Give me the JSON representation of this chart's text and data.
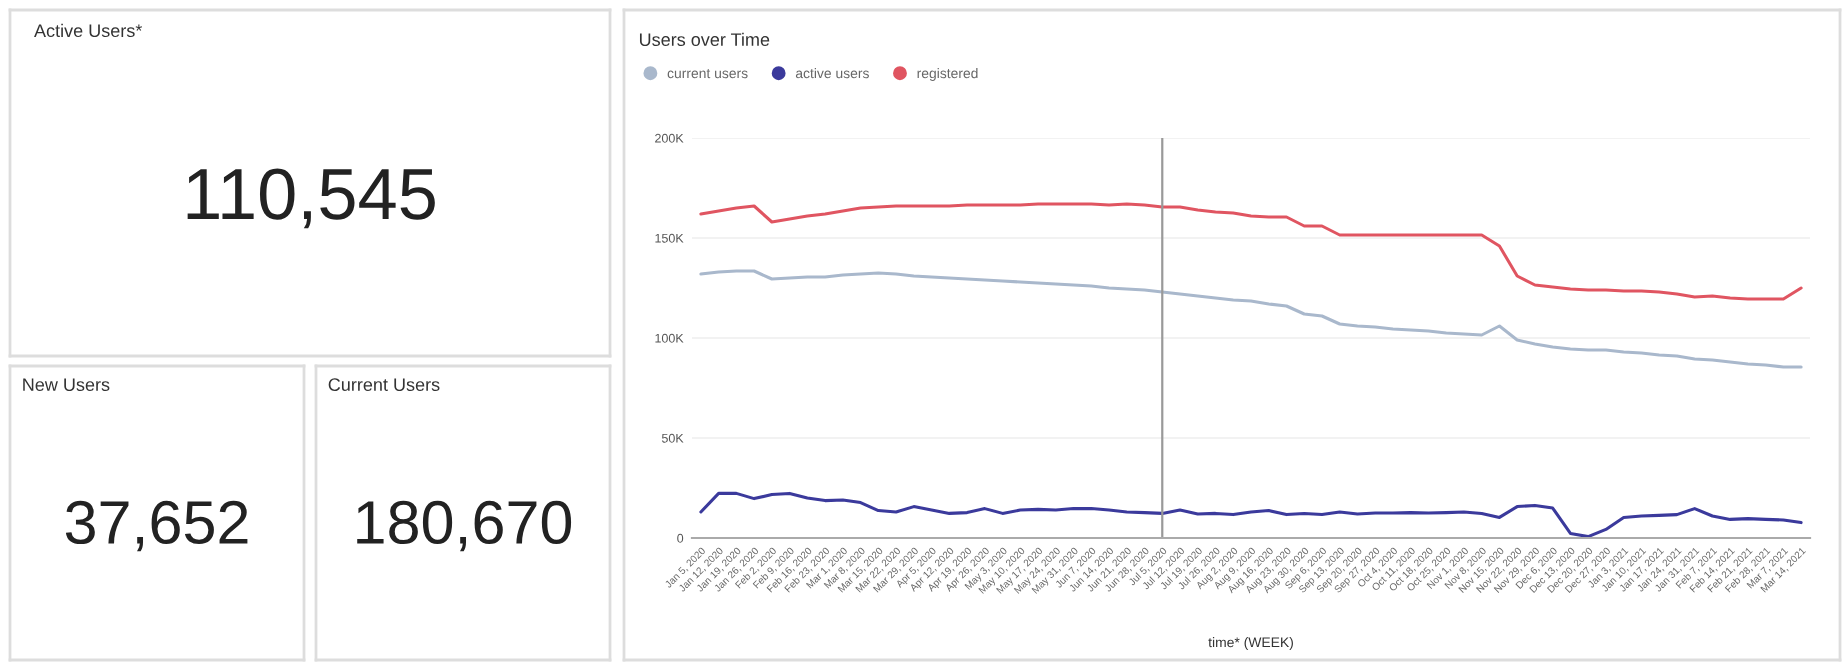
{
  "chart_data": [
    {
      "type": "other",
      "title": "Active Users*",
      "annotations": [
        "110,545"
      ]
    },
    {
      "type": "other",
      "title": "New Users",
      "annotations": [
        "37,652"
      ]
    },
    {
      "type": "other",
      "title": "Current Users",
      "annotations": [
        "180,670"
      ]
    },
    {
      "type": "line",
      "title": "Users over Time",
      "xlabel": "time* (WEEK)",
      "categories": [
        "Jan 5, 2020",
        "Jan 12, 2020",
        "Jan 19, 2020",
        "Jan 26, 2020",
        "Feb 2, 2020",
        "Feb 9, 2020",
        "Feb 16, 2020",
        "Feb 23, 2020",
        "Mar 1, 2020",
        "Mar 8, 2020",
        "Mar 15, 2020",
        "Mar 22, 2020",
        "Mar 29, 2020",
        "Apr 5, 2020",
        "Apr 12, 2020",
        "Apr 19, 2020",
        "Apr 26, 2020",
        "May 3, 2020",
        "May 10, 2020",
        "May 17, 2020",
        "May 24, 2020",
        "May 31, 2020",
        "Jun 7, 2020",
        "Jun 14, 2020",
        "Jun 21, 2020",
        "Jun 28, 2020",
        "Jul 5, 2020",
        "Jul 12, 2020",
        "Jul 19, 2020",
        "Jul 26, 2020",
        "Aug 2, 2020",
        "Aug 9, 2020",
        "Aug 16, 2020",
        "Aug 23, 2020",
        "Aug 30, 2020",
        "Sep 6, 2020",
        "Sep 13, 2020",
        "Sep 20, 2020",
        "Sep 27, 2020",
        "Oct 4, 2020",
        "Oct 11, 2020",
        "Oct 18, 2020",
        "Oct 25, 2020",
        "Nov 1, 2020",
        "Nov 8, 2020",
        "Nov 15, 2020",
        "Nov 22, 2020",
        "Nov 29, 2020",
        "Dec 6, 2020",
        "Dec 13, 2020",
        "Dec 20, 2020",
        "Dec 27, 2020",
        "Jan 3, 2021",
        "Jan 10, 2021",
        "Jan 17, 2021",
        "Jan 24, 2021",
        "Jan 31, 2021",
        "Feb 7, 2021",
        "Feb 14, 2021",
        "Feb 21, 2021",
        "Feb 28, 2021",
        "Mar 7, 2021",
        "Mar 14, 2021"
      ],
      "series": [
        {
          "name": "current users",
          "color": "#a9b8cc",
          "values": [
            132000,
            133000,
            133500,
            133500,
            129500,
            130000,
            130500,
            130500,
            131500,
            132000,
            132500,
            132000,
            131000,
            130500,
            130000,
            129500,
            129000,
            128500,
            128000,
            127500,
            127000,
            126500,
            126000,
            125000,
            124500,
            124000,
            123000,
            122000,
            121000,
            120000,
            119000,
            118500,
            117000,
            116000,
            112000,
            111000,
            107000,
            106000,
            105500,
            104500,
            104000,
            103500,
            102500,
            102000,
            101500,
            106000,
            99000,
            97000,
            95500,
            94500,
            94000,
            94000,
            93000,
            92500,
            91500,
            91000,
            89500,
            89000,
            88000,
            87000,
            86500,
            85500,
            85500
          ]
        },
        {
          "name": "active users",
          "color": "#3b3a9c",
          "values": [
            13000,
            22300,
            22300,
            19700,
            21700,
            22300,
            20000,
            18700,
            19000,
            17700,
            13700,
            13000,
            15700,
            14000,
            12300,
            12700,
            14700,
            12300,
            14000,
            14300,
            14000,
            14700,
            14700,
            14000,
            13000,
            12700,
            12300,
            14000,
            12000,
            12300,
            11700,
            13000,
            13700,
            11700,
            12300,
            11700,
            13000,
            12000,
            12500,
            12500,
            12700,
            12500,
            12700,
            13000,
            12300,
            10300,
            15700,
            16300,
            15000,
            2300,
            700,
            4300,
            10300,
            11000,
            11300,
            11700,
            14700,
            11000,
            9300,
            9700,
            9300,
            9000,
            7700
          ]
        },
        {
          "name": "registered",
          "color": "#e05561",
          "values": [
            162000,
            163500,
            165000,
            166000,
            158000,
            159500,
            161000,
            162000,
            163500,
            165000,
            165500,
            166000,
            166000,
            166000,
            166000,
            166500,
            166500,
            166500,
            166500,
            167000,
            167000,
            167000,
            167000,
            166500,
            167000,
            166500,
            165500,
            165500,
            164000,
            163000,
            162500,
            161000,
            160500,
            160500,
            156000,
            156000,
            151500,
            151500,
            151500,
            151500,
            151500,
            151500,
            151500,
            151500,
            151500,
            146000,
            131000,
            126500,
            125500,
            124500,
            124000,
            124000,
            123500,
            123500,
            123000,
            122000,
            120500,
            121000,
            120000,
            119500,
            119500,
            119500,
            125000
          ]
        }
      ],
      "ylim": [
        0,
        200000
      ],
      "yticks": [
        {
          "value": 0,
          "label": "0"
        },
        {
          "value": 50000,
          "label": "50K"
        },
        {
          "value": 100000,
          "label": "100K"
        },
        {
          "value": 150000,
          "label": "150K"
        },
        {
          "value": 200000,
          "label": "200K"
        }
      ],
      "ref_lines": [
        {
          "axis": "x",
          "value": "Jul 5, 2020",
          "color": "#999999"
        }
      ],
      "grid": "y",
      "legend": "top left",
      "marker": "none",
      "line_style": "solid"
    }
  ]
}
